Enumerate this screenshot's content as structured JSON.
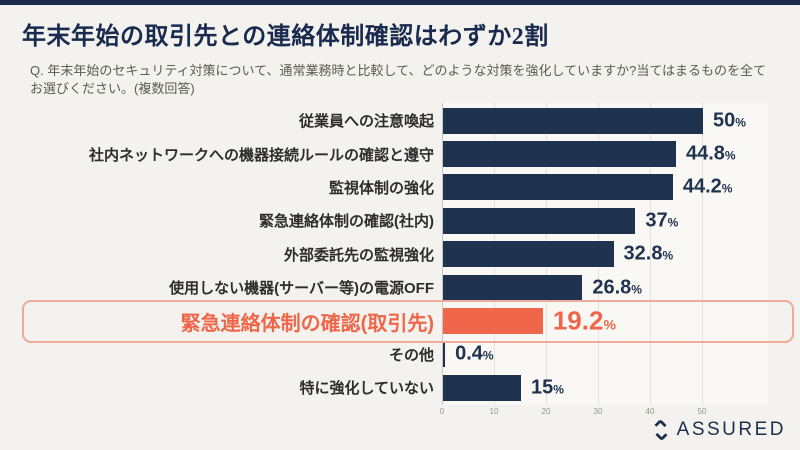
{
  "page": {
    "title": "年末年始の取引先との連絡体制確認はわずか2割",
    "question": "Q. 年末年始のセキュリティ対策について、通常業務時と比較して、どのような対策を強化していますか?当てはまるものを全てお選びください。(複数回答)"
  },
  "chart_data": {
    "type": "bar",
    "orientation": "horizontal",
    "categories": [
      "従業員への注意喚起",
      "社内ネットワークへの機器接続ルールの確認と遵守",
      "監視体制の強化",
      "緊急連絡体制の確認(社内)",
      "外部委託先の監視強化",
      "使用しない機器(サーバー等)の電源OFF",
      "緊急連絡体制の確認(取引先)",
      "その他",
      "特に強化していない"
    ],
    "values": [
      50,
      44.8,
      44.2,
      37,
      32.8,
      26.8,
      19.2,
      0.4,
      15
    ],
    "value_labels": [
      "50",
      "44.8",
      "44.2",
      "37",
      "32.8",
      "26.8",
      "19.2",
      "0.4",
      "15"
    ],
    "unit": "%",
    "highlighted_index": 6,
    "x_ticks": [
      0,
      10,
      20,
      30,
      40,
      50
    ],
    "xlim": [
      0,
      62
    ],
    "grid": true,
    "legend": false,
    "colors": {
      "bar": "#1f3351",
      "highlight_bar": "#f0664a",
      "highlight_border": "#eeab97",
      "value_label": "#1f3351",
      "highlight_text": "#f0664a"
    }
  },
  "branding": {
    "logo_text": "ASSURED",
    "logo_icon": "diamond-brackets-icon",
    "logo_color": "#1d2f4e"
  }
}
